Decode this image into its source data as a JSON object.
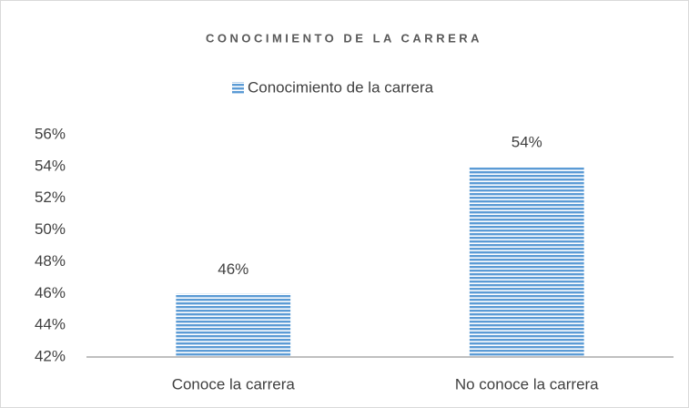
{
  "chart_data": {
    "type": "bar",
    "title": "CONOCIMIENTO DE LA CARRERA",
    "categories": [
      "Conoce la carrera",
      "No conoce la carrera"
    ],
    "series": [
      {
        "name": "Conocimiento de la carrera",
        "color": "#5b9bd5",
        "values": [
          46,
          54
        ],
        "value_labels": [
          "46%",
          "54%"
        ]
      }
    ],
    "ylim": [
      42,
      56
    ],
    "yticks": [
      {
        "value": 42,
        "label": "42%"
      },
      {
        "value": 44,
        "label": "44%"
      },
      {
        "value": 46,
        "label": "46%"
      },
      {
        "value": 48,
        "label": "48%"
      },
      {
        "value": 50,
        "label": "50%"
      },
      {
        "value": 52,
        "label": "52%"
      },
      {
        "value": 54,
        "label": "54%"
      },
      {
        "value": 56,
        "label": "56%"
      }
    ],
    "grid": false,
    "legend": "top"
  }
}
